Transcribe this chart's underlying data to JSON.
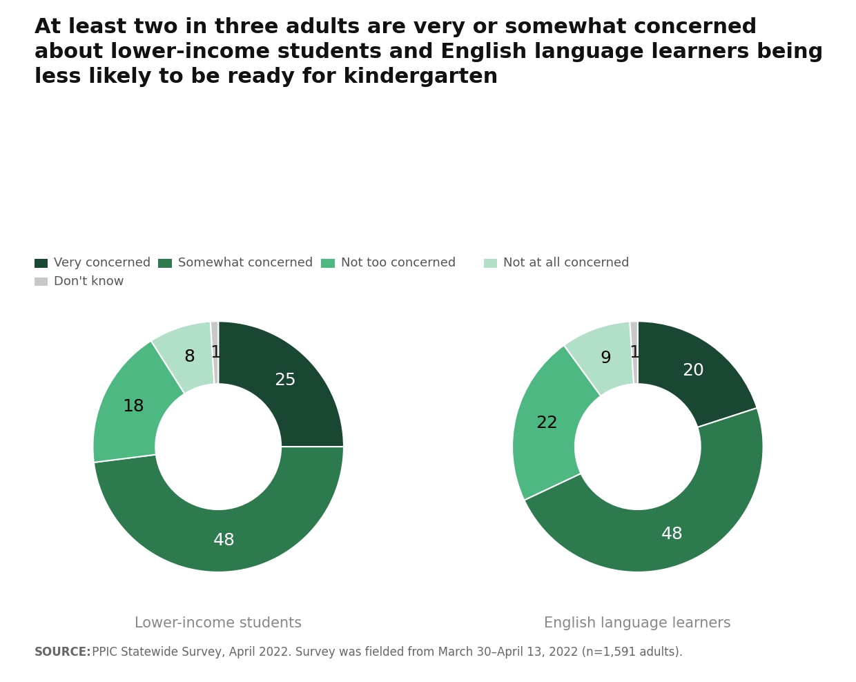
{
  "title_lines": [
    "At least two in three adults are very or somewhat concerned",
    "about lower-income students and English language learners being",
    "less likely to be ready for kindergarten"
  ],
  "charts": [
    {
      "label": "Lower-income students",
      "values": [
        25,
        48,
        18,
        8,
        1
      ]
    },
    {
      "label": "English language learners",
      "values": [
        20,
        48,
        22,
        9,
        1
      ]
    }
  ],
  "categories": [
    "Very concerned",
    "Somewhat concerned",
    "Not too concerned",
    "Not at all concerned",
    "Don't know"
  ],
  "colors": [
    "#1a4731",
    "#2d7a4f",
    "#4db882",
    "#b2dfc8",
    "#c8c8c8"
  ],
  "text_colors": [
    "#ffffff",
    "#ffffff",
    "#000000",
    "#000000",
    "#1a1a1a"
  ],
  "source_bold": "SOURCE:",
  "source_rest": " PPIC Statewide Survey, April 2022. Survey was fielded from March 30–April 13, 2022 (n=1,591 adults).",
  "background_color": "#ffffff",
  "source_bg_color": "#e8e8e8",
  "title_fontsize": 22,
  "legend_fontsize": 13,
  "label_fontsize": 18,
  "chart_label_fontsize": 15,
  "source_fontsize": 12
}
